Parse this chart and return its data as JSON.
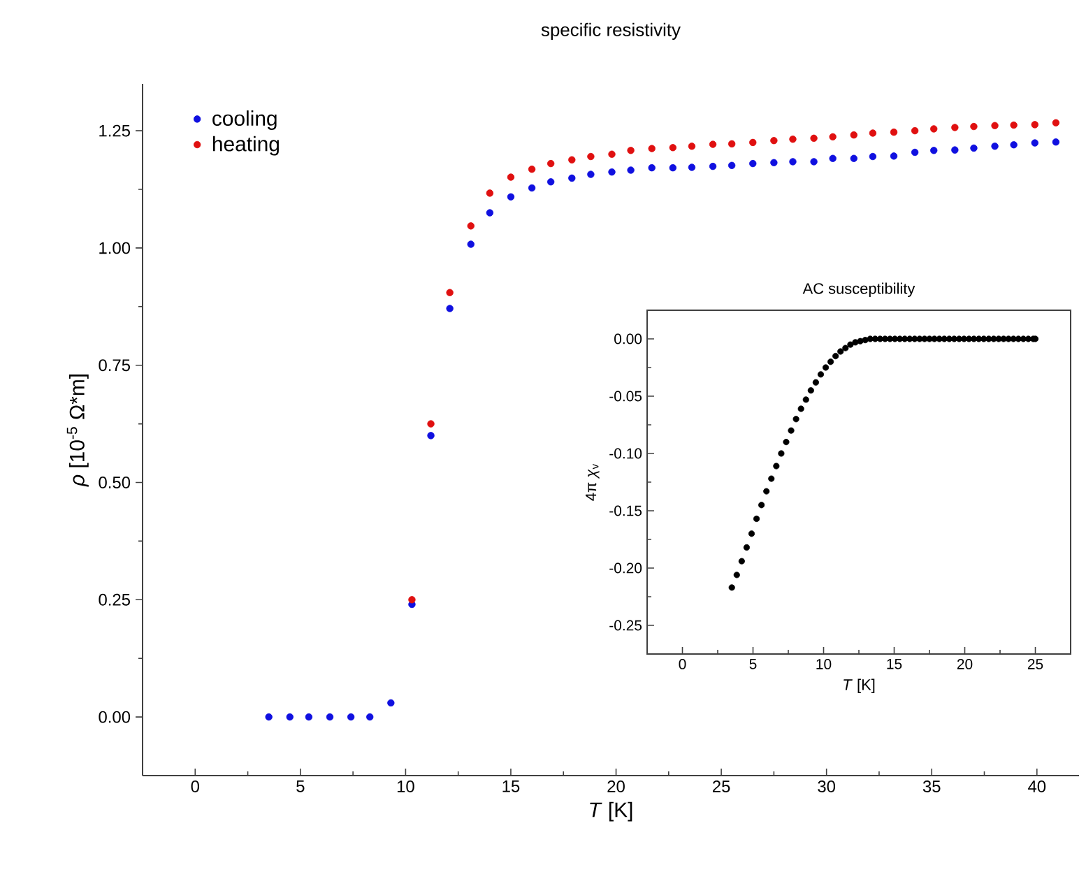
{
  "chart_data": [
    {
      "type": "scatter",
      "title": "specific resistivity",
      "xlabel": "*T* [K]",
      "ylabel": "*ρ* [10$^{-5}$ Ω*m]",
      "marker": "circle",
      "legend": "top left",
      "xlim": [
        -2.5,
        42
      ],
      "ylim": [
        -0.125,
        1.35
      ],
      "xticks": [
        0,
        5,
        10,
        15,
        20,
        25,
        30,
        35,
        40
      ],
      "yticks": [
        {
          "value": 0,
          "label": "0.00"
        },
        {
          "value": 0.25,
          "label": "0.25"
        },
        {
          "value": 0.5,
          "label": "0.50"
        },
        {
          "value": 0.75,
          "label": "0.75"
        },
        {
          "value": 1,
          "label": "1.00"
        },
        {
          "value": 1.25,
          "label": "1.25"
        }
      ],
      "x": [
        3.5,
        4.5,
        5.4,
        6.4,
        7.4,
        8.3,
        9.3,
        10.3,
        11.2,
        12.1,
        13.1,
        14.0,
        15.0,
        16.0,
        16.9,
        17.9,
        18.8,
        19.8,
        20.7,
        21.7,
        22.7,
        23.6,
        24.6,
        25.5,
        26.5,
        27.5,
        28.4,
        29.4,
        30.3,
        31.3,
        32.2,
        33.2,
        34.2,
        35.1,
        36.1,
        37.0,
        38.0,
        38.9,
        39.9,
        40.9
      ],
      "series": [
        {
          "name": "cooling",
          "color": "#1010e0",
          "values": [
            0,
            0,
            0,
            0,
            0,
            0,
            0.03,
            0.24,
            0.6,
            0.871,
            1.008,
            1.075,
            1.109,
            1.128,
            1.141,
            1.149,
            1.157,
            1.162,
            1.166,
            1.171,
            1.171,
            1.172,
            1.174,
            1.176,
            1.18,
            1.182,
            1.184,
            1.184,
            1.191,
            1.191,
            1.195,
            1.196,
            1.204,
            1.208,
            1.209,
            1.213,
            1.217,
            1.22,
            1.224,
            1.226
          ]
        },
        {
          "name": "heating",
          "color": "#e01010",
          "values": [
            null,
            null,
            null,
            null,
            null,
            null,
            null,
            0.25,
            0.625,
            0.905,
            1.047,
            1.117,
            1.151,
            1.168,
            1.18,
            1.188,
            1.195,
            1.2,
            1.208,
            1.212,
            1.214,
            1.217,
            1.221,
            1.222,
            1.225,
            1.229,
            1.232,
            1.234,
            1.237,
            1.241,
            1.245,
            1.247,
            1.25,
            1.254,
            1.257,
            1.259,
            1.261,
            1.262,
            1.263,
            1.267
          ]
        }
      ]
    },
    {
      "type": "scatter",
      "title": "AC susceptibility",
      "xlabel": "*T* [K]",
      "ylabel": "4π *χ*$_{v}$",
      "marker": "circle",
      "xlim": [
        -2.5,
        27.5
      ],
      "ylim": [
        -0.275,
        0.025
      ],
      "xticks": [
        0,
        5,
        10,
        15,
        20,
        25
      ],
      "yticks": [
        {
          "value": 0,
          "label": "0.00"
        },
        {
          "value": -0.05,
          "label": "-0.05"
        },
        {
          "value": -0.1,
          "label": "-0.10"
        },
        {
          "value": -0.15,
          "label": "-0.15"
        },
        {
          "value": -0.2,
          "label": "-0.20"
        },
        {
          "value": -0.25,
          "label": "-0.25"
        }
      ],
      "x": [
        3.5,
        3.85,
        4.2,
        4.55,
        4.9,
        5.25,
        5.6,
        5.95,
        6.3,
        6.65,
        7.0,
        7.35,
        7.7,
        8.05,
        8.4,
        8.75,
        9.1,
        9.45,
        9.8,
        10.15,
        10.5,
        10.85,
        11.2,
        11.55,
        11.9,
        12.25,
        12.6,
        12.95,
        13.3,
        13.65,
        14.0,
        14.35,
        14.7,
        15.05,
        15.4,
        15.75,
        16.1,
        16.45,
        16.8,
        17.15,
        17.5,
        17.85,
        18.2,
        18.55,
        18.9,
        19.25,
        19.6,
        19.95,
        20.3,
        20.65,
        21.0,
        21.35,
        21.7,
        22.05,
        22.4,
        22.75,
        23.1,
        23.45,
        23.8,
        24.15,
        24.5,
        24.85,
        25.0
      ],
      "series": [
        {
          "color": "#000000",
          "values": [
            -0.217,
            -0.206,
            -0.194,
            -0.182,
            -0.17,
            -0.157,
            -0.145,
            -0.133,
            -0.122,
            -0.111,
            -0.1,
            -0.09,
            -0.08,
            -0.07,
            -0.061,
            -0.053,
            -0.045,
            -0.038,
            -0.031,
            -0.025,
            -0.02,
            -0.015,
            -0.011,
            -0.008,
            -0.005,
            -0.003,
            -0.002,
            -0.001,
            0,
            0,
            0,
            0,
            0,
            0,
            0,
            0,
            0,
            0,
            0,
            0,
            0,
            0,
            0,
            0,
            0,
            0,
            0,
            0,
            0,
            0,
            0,
            0,
            0,
            0,
            0,
            0,
            0,
            0,
            0,
            0,
            0,
            0,
            0
          ]
        }
      ]
    }
  ]
}
